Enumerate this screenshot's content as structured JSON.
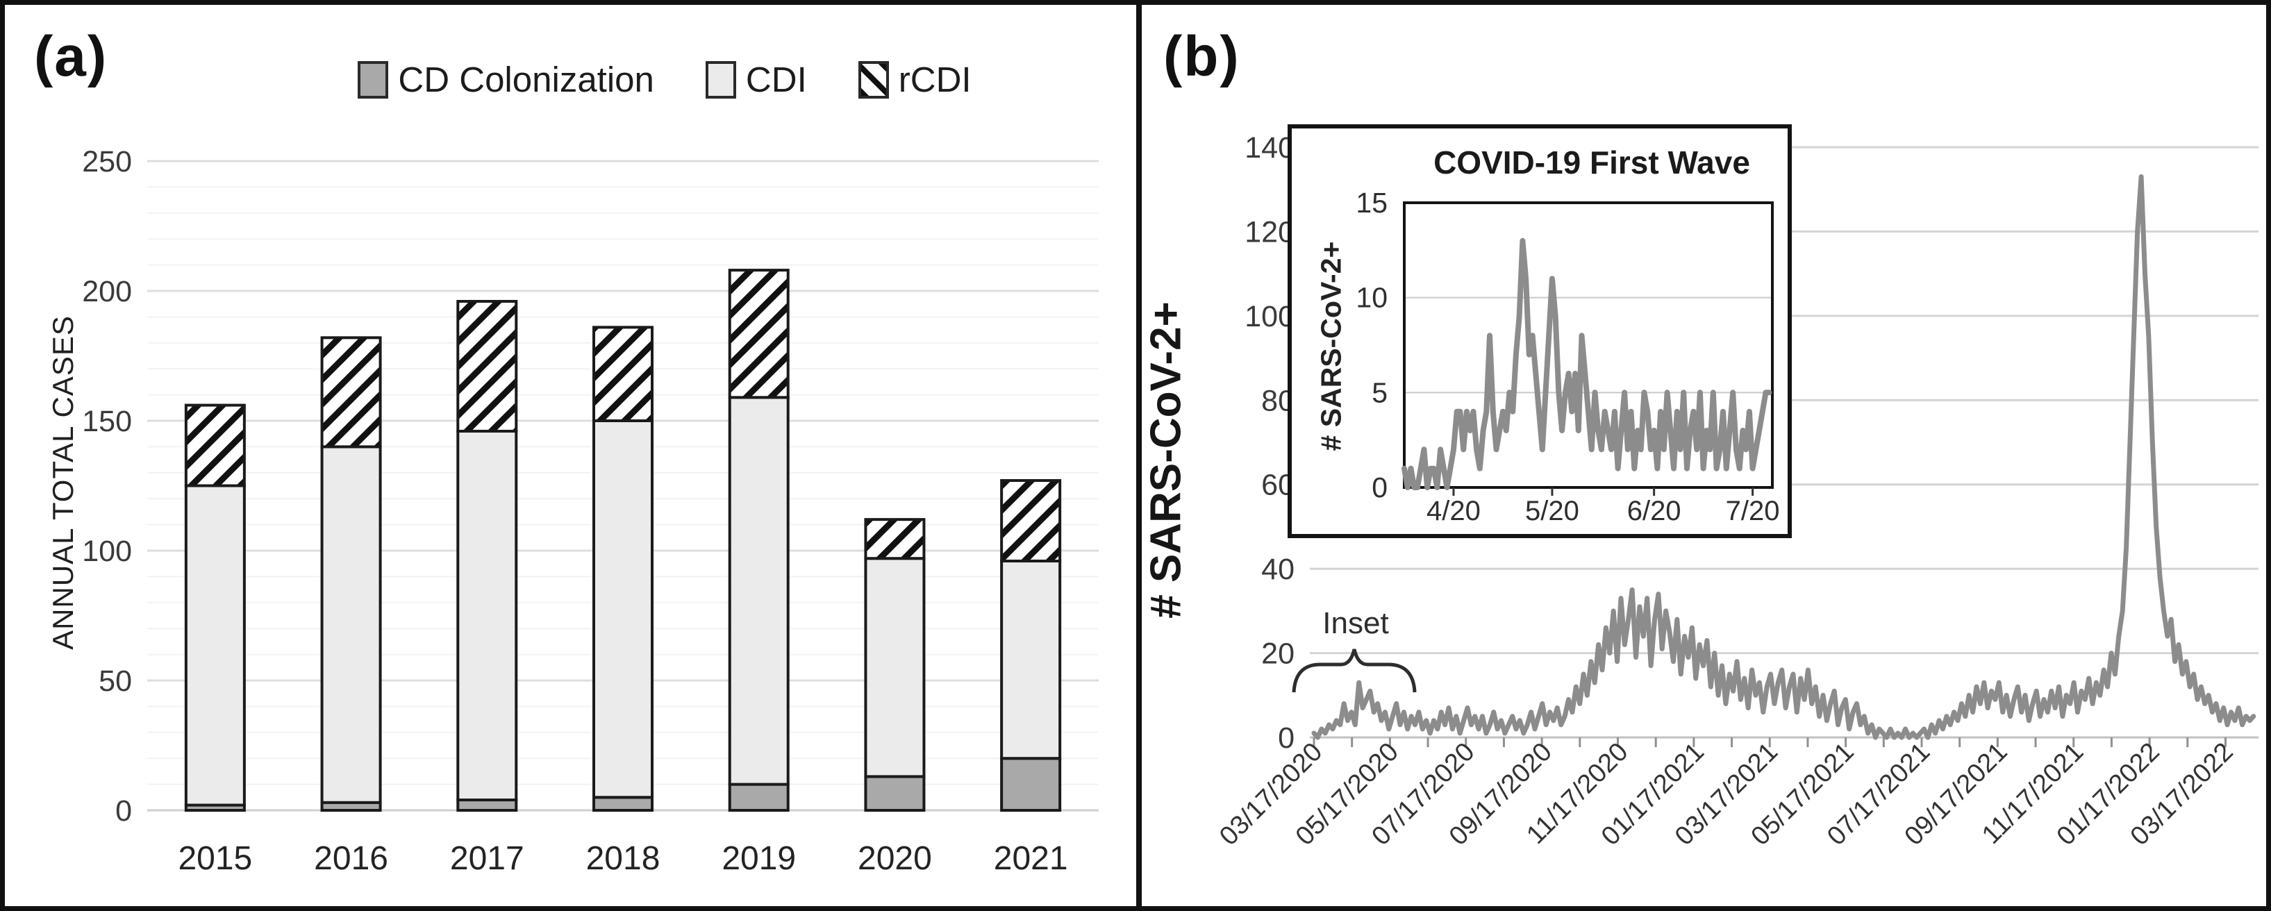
{
  "figure": {
    "panel_a_label": "(a)",
    "panel_b_label": "(b)",
    "background": "#ffffff",
    "border_color": "#111111"
  },
  "chart_data": [
    {
      "type": "bar",
      "panel": "a",
      "stacked": true,
      "ylabel": "ANNUAL TOTAL CASES",
      "ylim": [
        0,
        250
      ],
      "yticks": [
        0,
        50,
        100,
        150,
        200,
        250
      ],
      "minor_grid_step": 10,
      "grid": true,
      "legend_position": "top",
      "categories": [
        "2015",
        "2016",
        "2017",
        "2018",
        "2019",
        "2020",
        "2021"
      ],
      "series": [
        {
          "name": "CD Colonization",
          "style": "gray",
          "color": "#a9a9a9",
          "values": [
            2,
            3,
            4,
            5,
            10,
            13,
            20
          ]
        },
        {
          "name": "CDI",
          "style": "light",
          "color": "#ebebeb",
          "values": [
            123,
            137,
            142,
            145,
            149,
            84,
            76
          ]
        },
        {
          "name": "rCDI",
          "style": "hatch",
          "color": "#ffffff",
          "values": [
            31,
            42,
            50,
            36,
            49,
            15,
            31
          ]
        }
      ],
      "totals": [
        156,
        182,
        196,
        186,
        208,
        112,
        127
      ]
    },
    {
      "type": "line",
      "panel": "b",
      "ylabel": "# SARS-CoV-2+",
      "ylim": [
        0,
        140
      ],
      "yticks": [
        0,
        20,
        40,
        60,
        80,
        100,
        120,
        140
      ],
      "grid": true,
      "line_color": "#8c8c8c",
      "annotation": "Inset",
      "start_date": "03/17/2020",
      "step_days": 3,
      "xticks": [
        {
          "label": "03/17/2020",
          "day": 0
        },
        {
          "label": "05/17/2020",
          "day": 61
        },
        {
          "label": "07/17/2020",
          "day": 122
        },
        {
          "label": "09/17/2020",
          "day": 184
        },
        {
          "label": "11/17/2020",
          "day": 245
        },
        {
          "label": "01/17/2021",
          "day": 306
        },
        {
          "label": "03/17/2021",
          "day": 365
        },
        {
          "label": "05/17/2021",
          "day": 426
        },
        {
          "label": "07/17/2021",
          "day": 487
        },
        {
          "label": "09/17/2021",
          "day": 549
        },
        {
          "label": "11/17/2021",
          "day": 610
        },
        {
          "label": "01/17/2022",
          "day": 671
        },
        {
          "label": "03/17/2022",
          "day": 730
        }
      ],
      "xmax_day": 757,
      "values": [
        1,
        0,
        2,
        1,
        3,
        2,
        4,
        3,
        8,
        4,
        6,
        3,
        13,
        7,
        9,
        11,
        6,
        8,
        4,
        6,
        2,
        5,
        8,
        3,
        6,
        2,
        5,
        3,
        6,
        2,
        4,
        1,
        4,
        2,
        6,
        3,
        7,
        2,
        5,
        1,
        4,
        7,
        3,
        5,
        2,
        5,
        1,
        3,
        6,
        2,
        4,
        1,
        3,
        5,
        2,
        4,
        1,
        3,
        6,
        2,
        5,
        8,
        3,
        6,
        4,
        7,
        3,
        5,
        9,
        6,
        12,
        8,
        15,
        10,
        18,
        13,
        22,
        16,
        26,
        20,
        30,
        18,
        33,
        22,
        28,
        35,
        19,
        31,
        24,
        33,
        17,
        28,
        34,
        21,
        30,
        25,
        18,
        28,
        15,
        24,
        19,
        26,
        14,
        22,
        17,
        23,
        12,
        20,
        10,
        17,
        8,
        15,
        11,
        18,
        9,
        14,
        7,
        16,
        10,
        13,
        6,
        12,
        15,
        8,
        13,
        16,
        7,
        12,
        15,
        6,
        14,
        9,
        16,
        8,
        12,
        5,
        10,
        4,
        8,
        11,
        3,
        7,
        9,
        2,
        6,
        8,
        3,
        5,
        1,
        3,
        0,
        2,
        1,
        0,
        2,
        0,
        1,
        0,
        2,
        0,
        1,
        0,
        1,
        2,
        0,
        3,
        1,
        4,
        2,
        5,
        3,
        6,
        4,
        8,
        5,
        10,
        6,
        12,
        8,
        13,
        7,
        11,
        9,
        13,
        6,
        10,
        5,
        9,
        12,
        6,
        10,
        4,
        8,
        11,
        5,
        9,
        6,
        11,
        7,
        12,
        5,
        10,
        8,
        13,
        6,
        11,
        9,
        14,
        8,
        13,
        10,
        16,
        12,
        20,
        15,
        24,
        30,
        45,
        70,
        95,
        120,
        133,
        110,
        95,
        70,
        50,
        38,
        30,
        24,
        28,
        18,
        22,
        15,
        18,
        12,
        15,
        9,
        12,
        8,
        10,
        6,
        8,
        4,
        7,
        3,
        6,
        4,
        7,
        3,
        5,
        4,
        5
      ]
    },
    {
      "type": "line",
      "panel": "b-inset",
      "title": "COVID-19 First Wave",
      "ylabel": "# SARS-CoV-2+",
      "ylim": [
        0,
        15
      ],
      "yticks": [
        0,
        5,
        10,
        15
      ],
      "grid": true,
      "line_color": "#8c8c8c",
      "step_days": 1,
      "xticks": [
        {
          "label": "4/20",
          "day": 15
        },
        {
          "label": "5/20",
          "day": 45
        },
        {
          "label": "6/20",
          "day": 76
        },
        {
          "label": "7/20",
          "day": 106
        }
      ],
      "xmax_day": 112,
      "values": [
        1,
        0,
        1,
        0,
        0,
        1,
        2,
        0,
        1,
        1,
        0,
        2,
        1,
        0,
        1,
        2,
        4,
        4,
        2,
        4,
        3,
        4,
        2,
        1,
        3,
        4,
        8,
        4,
        2,
        3,
        4,
        3,
        5,
        4,
        7,
        9,
        13,
        11,
        7,
        8,
        6,
        4,
        2,
        5,
        8,
        11,
        9,
        5,
        3,
        5,
        6,
        4,
        6,
        3,
        8,
        6,
        4,
        2,
        5,
        3,
        2,
        4,
        3,
        2,
        4,
        1,
        3,
        5,
        2,
        4,
        1,
        3,
        2,
        5,
        4,
        2,
        3,
        1,
        4,
        2,
        5,
        3,
        1,
        4,
        2,
        5,
        1,
        3,
        4,
        2,
        5,
        1,
        3,
        2,
        5,
        1,
        2,
        4,
        1,
        3,
        5,
        2,
        1,
        3,
        2,
        4,
        1,
        2,
        3,
        4,
        5,
        5
      ]
    }
  ]
}
